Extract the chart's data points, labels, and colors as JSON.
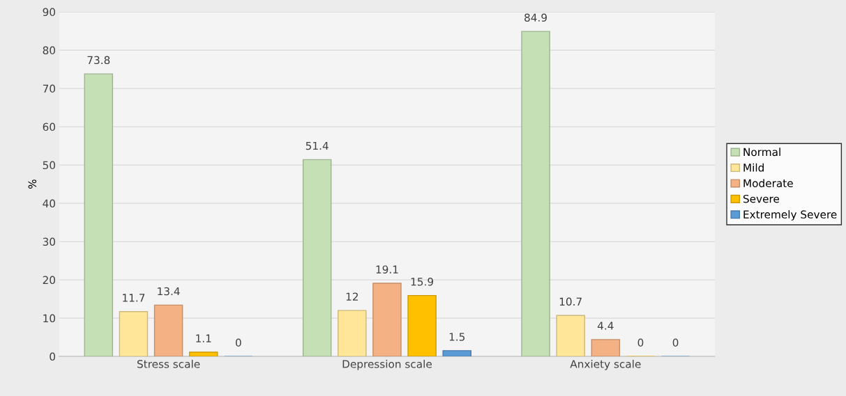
{
  "chart_data": {
    "type": "bar",
    "ylabel": "%",
    "categories": [
      "Stress scale",
      "Depression scale",
      "Anxiety scale"
    ],
    "series": [
      {
        "name": "Normal",
        "color": "#c5e0b4",
        "values": [
          73.8,
          51.4,
          84.9
        ]
      },
      {
        "name": "Mild",
        "color": "#ffe699",
        "values": [
          11.7,
          12,
          10.7
        ]
      },
      {
        "name": "Moderate",
        "color": "#f4b183",
        "values": [
          13.4,
          19.1,
          4.4
        ]
      },
      {
        "name": "Severe",
        "color": "#ffc000",
        "values": [
          1.1,
          15.9,
          0
        ]
      },
      {
        "name": "Extremely Severe",
        "color": "#5b9bd5",
        "values": [
          0,
          1.5,
          0
        ]
      }
    ],
    "ylim": [
      0,
      90
    ],
    "yticks": [
      0,
      10,
      20,
      30,
      40,
      50,
      60,
      70,
      80,
      90
    ],
    "grid": "y",
    "legend": "right",
    "data_labels": true
  }
}
